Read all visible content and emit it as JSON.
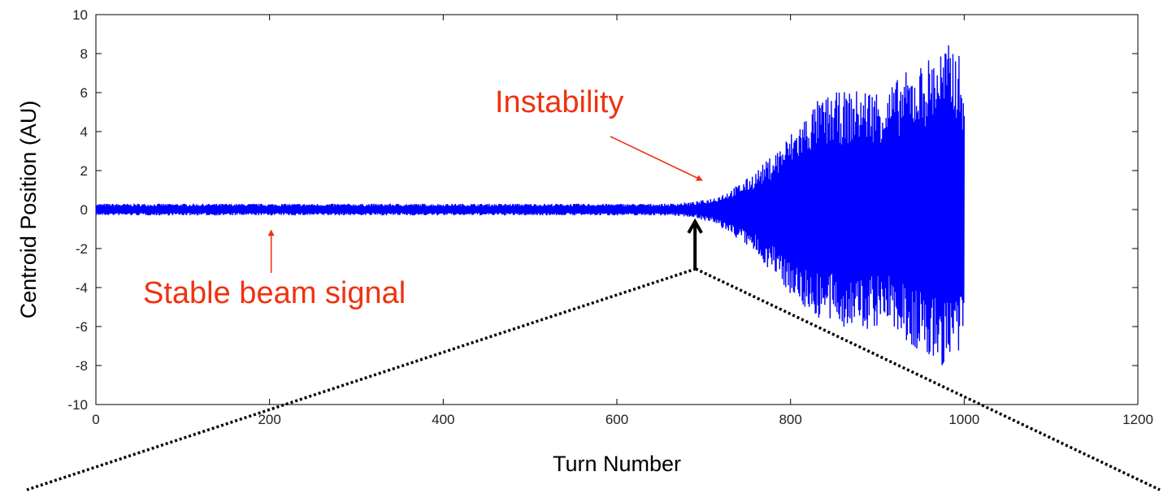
{
  "chart_data": {
    "type": "line",
    "title": "",
    "xlabel": "Turn Number",
    "ylabel": "Centroid  Position  (AU)",
    "xlim": [
      0,
      1200
    ],
    "ylim": [
      -10,
      10
    ],
    "x_ticks": [
      "0",
      "200",
      "400",
      "600",
      "800",
      "1000",
      "1200"
    ],
    "y_ticks": [
      "10",
      "8",
      "6",
      "4",
      "2",
      "0",
      "-2",
      "-4",
      "-6",
      "-8",
      "-10"
    ],
    "grid": false,
    "series": [
      {
        "color": "#0000ff",
        "envelope_x": [
          0,
          100,
          200,
          300,
          400,
          500,
          600,
          660,
          690,
          710,
          730,
          750,
          770,
          790,
          810,
          830,
          850,
          870,
          890,
          910,
          930,
          950,
          970,
          990,
          1000
        ],
        "envelope_upper": [
          0.3,
          0.3,
          0.3,
          0.3,
          0.3,
          0.3,
          0.3,
          0.3,
          0.4,
          0.6,
          1.0,
          1.6,
          2.4,
          3.4,
          4.5,
          5.6,
          6.0,
          6.1,
          6.3,
          6.2,
          7.0,
          7.5,
          8.3,
          8.6,
          7.0
        ],
        "envelope_lower": [
          -0.3,
          -0.3,
          -0.3,
          -0.3,
          -0.3,
          -0.3,
          -0.3,
          -0.3,
          -0.4,
          -0.7,
          -1.2,
          -1.9,
          -2.8,
          -3.8,
          -4.9,
          -5.6,
          -6.0,
          -6.1,
          -6.3,
          -5.8,
          -6.8,
          -7.6,
          -8.0,
          -8.3,
          -7.2
        ]
      }
    ],
    "annotations": [
      {
        "text": "Instability",
        "color": "#ee3311",
        "points_to": [
          690,
          1.6
        ]
      },
      {
        "text": "Stable beam signal",
        "color": "#ee3311",
        "points_to": [
          200,
          -0.6
        ]
      },
      {
        "text": "",
        "color": "#000000",
        "points_to": [
          690,
          -0.2
        ]
      }
    ]
  }
}
